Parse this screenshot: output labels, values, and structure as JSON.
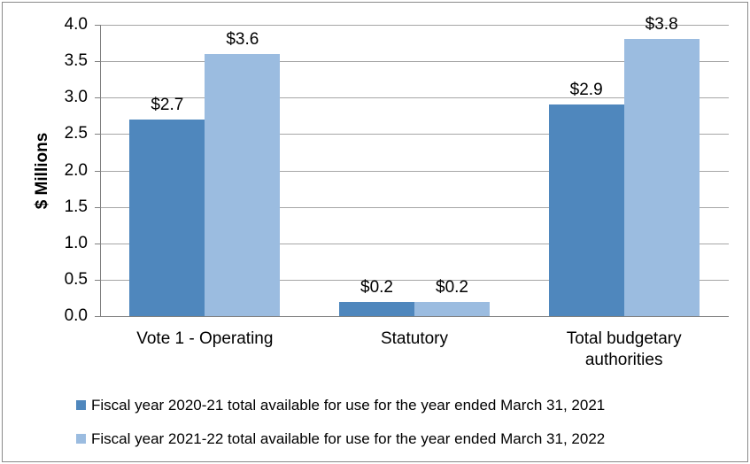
{
  "frame": {
    "background": "#ffffff",
    "border_color": "#8a8a8a"
  },
  "chart_data": {
    "type": "bar",
    "categories": [
      "Vote 1 - Operating",
      "Statutory",
      "Total budgetary authorities"
    ],
    "series": [
      {
        "name": "Fiscal year 2020-21 total available for use for the year ended March 31, 2021",
        "color": "#4f87bd",
        "values": [
          2.7,
          0.2,
          2.9
        ],
        "labels": [
          "$2.7",
          "$0.2",
          "$2.9"
        ]
      },
      {
        "name": "Fiscal year 2021-22 total available for use for the year ended March 31, 2022",
        "color": "#9bbce0",
        "values": [
          3.6,
          0.2,
          3.8
        ],
        "labels": [
          "$3.6",
          "$0.2",
          "$3.8"
        ]
      }
    ],
    "title": "",
    "xlabel": "",
    "ylabel": "$ Millions",
    "ylim": [
      0,
      4
    ],
    "ytick_step": 0.5,
    "ytick_labels": [
      "0.0",
      "0.5",
      "1.0",
      "1.5",
      "2.0",
      "2.5",
      "3.0",
      "3.5",
      "4.0"
    ],
    "grid": true,
    "legend_position": "bottom",
    "gridline_color": "#a6a6a6",
    "axis_color": "#808080",
    "text_color": "#000000"
  }
}
